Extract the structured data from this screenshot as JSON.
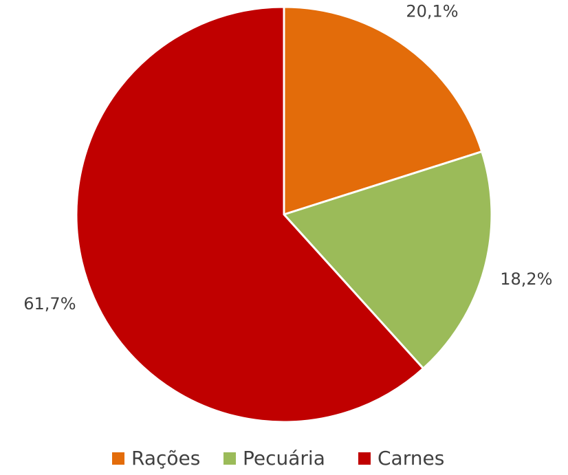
{
  "chart_data": {
    "type": "pie",
    "categories": [
      "Rações",
      "Pecuária",
      "Carnes"
    ],
    "values": [
      20.1,
      18.2,
      61.7
    ],
    "value_labels": [
      "20,1%",
      "18,2%",
      "61,7%"
    ],
    "colors": [
      "#e36c0a",
      "#9bbb59",
      "#c00000"
    ],
    "legend": "bottom"
  }
}
